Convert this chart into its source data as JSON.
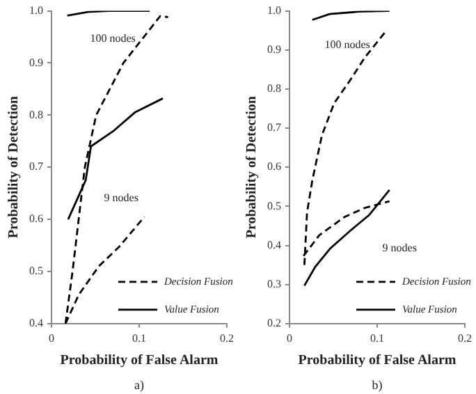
{
  "chart_data": [
    {
      "type": "line",
      "xlabel": "Probability of False Alarm",
      "ylabel": "Probability of Detection",
      "xlim": [
        0,
        0.2
      ],
      "xticks": [
        0,
        0.1,
        0.2
      ],
      "ylim": [
        0.4,
        1.0
      ],
      "yticks": [
        0.4,
        0.5,
        0.6,
        0.7,
        0.8,
        0.9,
        {
          "value": 1.0,
          "label": "1.0"
        }
      ],
      "grid": false,
      "legend": "bottom right",
      "marker": "none",
      "series": [
        {
          "name": "Decision Fusion",
          "color": "#000000",
          "line_style": "dashed",
          "x": [
            0.016,
            0.024,
            0.031,
            0.038,
            0.051,
            0.082,
            0.124,
            0.133
          ],
          "values": [
            0.4,
            0.5,
            0.6,
            0.7,
            0.8,
            0.9,
            0.99,
            0.988
          ]
        },
        {
          "name": "Value Fusion",
          "color": "#000000",
          "line_style": "solid",
          "x": [
            0.018,
            0.042,
            0.066,
            0.112
          ],
          "values": [
            0.991,
            0.998,
            1.0,
            1.0
          ]
        },
        {
          "color": "#000000",
          "line_style": "dashed",
          "x": [
            0.016,
            0.031,
            0.054,
            0.077,
            0.106
          ],
          "values": [
            0.4,
            0.455,
            0.51,
            0.547,
            0.605
          ]
        },
        {
          "color": "#000000",
          "line_style": "solid",
          "x": [
            0.019,
            0.039,
            0.045,
            0.071,
            0.095,
            0.127
          ],
          "values": [
            0.6,
            0.675,
            0.74,
            0.77,
            0.805,
            0.832
          ]
        }
      ],
      "annotations": [
        "100 nodes",
        "9 nodes",
        "a)"
      ]
    },
    {
      "type": "line",
      "xlabel": "Probability of False Alarm",
      "ylabel": "Probability of Detection",
      "xlim": [
        0,
        0.2
      ],
      "xticks": [
        0,
        0.1,
        0.2
      ],
      "ylim": [
        0.2,
        1.0
      ],
      "yticks": [
        0.2,
        0.3,
        0.4,
        0.5,
        0.6,
        0.7,
        0.8,
        0.9,
        {
          "value": 1.0,
          "label": "1.0"
        }
      ],
      "grid": false,
      "legend": "bottom right",
      "marker": "none",
      "series": [
        {
          "name": "Decision Fusion",
          "color": "#000000",
          "line_style": "dashed",
          "x": [
            0.017,
            0.02,
            0.026,
            0.037,
            0.051,
            0.069,
            0.086,
            0.111
          ],
          "values": [
            0.35,
            0.484,
            0.566,
            0.682,
            0.764,
            0.822,
            0.881,
            0.951
          ]
        },
        {
          "name": "Value Fusion",
          "color": "#000000",
          "line_style": "solid",
          "x": [
            0.026,
            0.046,
            0.08,
            0.114
          ],
          "values": [
            0.977,
            0.992,
            0.998,
            1.0
          ]
        },
        {
          "color": "#000000",
          "line_style": "dashed",
          "x": [
            0.016,
            0.034,
            0.063,
            0.086,
            0.114
          ],
          "values": [
            0.373,
            0.426,
            0.473,
            0.496,
            0.513
          ]
        },
        {
          "color": "#000000",
          "line_style": "solid",
          "x": [
            0.017,
            0.029,
            0.046,
            0.069,
            0.091,
            0.114
          ],
          "values": [
            0.297,
            0.344,
            0.391,
            0.437,
            0.478,
            0.542
          ]
        }
      ],
      "annotations": [
        "100 nodes",
        "9 nodes",
        "b)"
      ]
    }
  ]
}
